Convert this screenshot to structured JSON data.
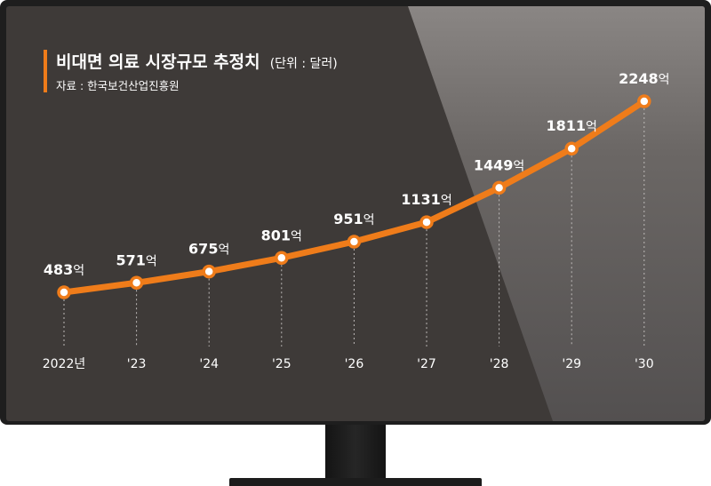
{
  "colors": {
    "line": "#ef7c1a",
    "screen": "#3e3a38",
    "bezel": "#1e1e1e",
    "text": "#ffffff"
  },
  "chart_data": {
    "type": "line",
    "title": "비대면 의료 시장규모 추정치",
    "unit_note": "(단위 : 달러)",
    "source": "자료 : 한국보건산업진흥원",
    "categories": [
      "2022년",
      "'23",
      "'24",
      "'25",
      "'26",
      "'27",
      "'28",
      "'29",
      "'30"
    ],
    "values": [
      483,
      571,
      675,
      801,
      951,
      1131,
      1449,
      1811,
      2248
    ],
    "value_labels": [
      "483",
      "571",
      "675",
      "801",
      "951",
      "1131",
      "1449",
      "1811",
      "2248"
    ],
    "value_suffix": "억",
    "ylim": [
      0,
      2400
    ],
    "grid": false,
    "legend": "none"
  }
}
